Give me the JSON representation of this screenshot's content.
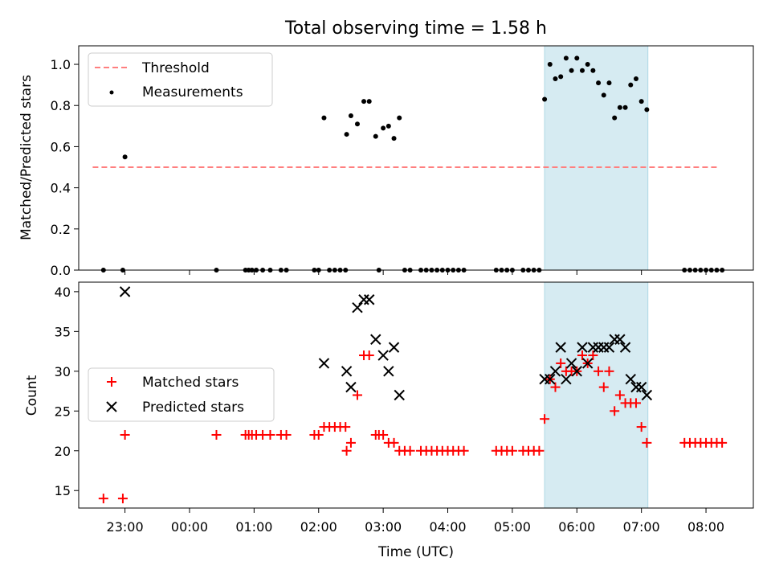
{
  "figure": {
    "title": "Total observing time = 1.58 h",
    "xlabel": "Time (UTC)",
    "highlight_color": "#add8e6"
  },
  "chart_data": [
    {
      "type": "scatter",
      "name": "ratio-panel",
      "ylabel": "Matched/Predicted stars",
      "xlim": [
        "22:17",
        "08:44"
      ],
      "ylim": [
        0,
        1.09
      ],
      "yticks": [
        0.0,
        0.2,
        0.4,
        0.6,
        0.8,
        1.0
      ],
      "ytick_labels": [
        "0.0",
        "0.2",
        "0.4",
        "0.6",
        "0.8",
        "1.0"
      ],
      "highlight_span": [
        "05:30",
        "07:06"
      ],
      "legend_position": "upper-left",
      "threshold": {
        "label": "Threshold",
        "y": 0.5,
        "x_start": "22:30",
        "x_end": "08:12",
        "color": "#ff7f7f"
      },
      "series": [
        {
          "label": "Measurements",
          "color": "#000000",
          "points": [
            [
              "22:40",
              0
            ],
            [
              "22:58",
              0
            ],
            [
              "23:00",
              0.55
            ],
            [
              "00:25",
              0
            ],
            [
              "00:52",
              0
            ],
            [
              "00:55",
              0
            ],
            [
              "00:58",
              0
            ],
            [
              "01:02",
              0
            ],
            [
              "01:08",
              0
            ],
            [
              "01:15",
              0
            ],
            [
              "01:25",
              0
            ],
            [
              "01:30",
              0
            ],
            [
              "01:56",
              0
            ],
            [
              "02:00",
              0
            ],
            [
              "02:05",
              0.74
            ],
            [
              "02:10",
              0
            ],
            [
              "02:15",
              0
            ],
            [
              "02:20",
              0
            ],
            [
              "02:25",
              0
            ],
            [
              "02:26",
              0.66
            ],
            [
              "02:30",
              0.75
            ],
            [
              "02:36",
              0.71
            ],
            [
              "02:42",
              0.82
            ],
            [
              "02:47",
              0.82
            ],
            [
              "02:53",
              0.65
            ],
            [
              "02:56",
              0
            ],
            [
              "03:00",
              0.69
            ],
            [
              "03:05",
              0.7
            ],
            [
              "03:10",
              0.64
            ],
            [
              "03:15",
              0.74
            ],
            [
              "03:20",
              0
            ],
            [
              "03:25",
              0
            ],
            [
              "03:35",
              0
            ],
            [
              "03:40",
              0
            ],
            [
              "03:45",
              0
            ],
            [
              "03:50",
              0
            ],
            [
              "03:55",
              0
            ],
            [
              "04:00",
              0
            ],
            [
              "04:05",
              0
            ],
            [
              "04:10",
              0
            ],
            [
              "04:15",
              0
            ],
            [
              "04:45",
              0
            ],
            [
              "04:50",
              0
            ],
            [
              "04:55",
              0
            ],
            [
              "05:00",
              0
            ],
            [
              "05:10",
              0
            ],
            [
              "05:15",
              0
            ],
            [
              "05:20",
              0
            ],
            [
              "05:25",
              0
            ],
            [
              "05:30",
              0.83
            ],
            [
              "05:35",
              1.0
            ],
            [
              "05:40",
              0.93
            ],
            [
              "05:45",
              0.94
            ],
            [
              "05:50",
              1.03
            ],
            [
              "05:55",
              0.97
            ],
            [
              "06:00",
              1.03
            ],
            [
              "06:05",
              0.97
            ],
            [
              "06:10",
              1.0
            ],
            [
              "06:15",
              0.97
            ],
            [
              "06:20",
              0.91
            ],
            [
              "06:25",
              0.85
            ],
            [
              "06:30",
              0.91
            ],
            [
              "06:35",
              0.74
            ],
            [
              "06:40",
              0.79
            ],
            [
              "06:45",
              0.79
            ],
            [
              "06:50",
              0.9
            ],
            [
              "06:55",
              0.93
            ],
            [
              "07:00",
              0.82
            ],
            [
              "07:05",
              0.78
            ],
            [
              "07:40",
              0
            ],
            [
              "07:45",
              0
            ],
            [
              "07:50",
              0
            ],
            [
              "07:55",
              0
            ],
            [
              "08:00",
              0
            ],
            [
              "08:05",
              0
            ],
            [
              "08:10",
              0
            ],
            [
              "08:15",
              0
            ]
          ]
        }
      ]
    },
    {
      "type": "scatter",
      "name": "count-panel",
      "ylabel": "Count",
      "xlim": [
        "22:17",
        "08:44"
      ],
      "ylim": [
        12.8,
        41.2
      ],
      "yticks": [
        15,
        20,
        25,
        30,
        35,
        40
      ],
      "ytick_labels": [
        "15",
        "20",
        "25",
        "30",
        "35",
        "40"
      ],
      "xticks": [
        "23:00",
        "00:00",
        "01:00",
        "02:00",
        "03:00",
        "04:00",
        "05:00",
        "06:00",
        "07:00",
        "08:00"
      ],
      "xtick_labels": [
        "23:00",
        "00:00",
        "01:00",
        "02:00",
        "03:00",
        "04:00",
        "05:00",
        "06:00",
        "07:00",
        "08:00"
      ],
      "highlight_span": [
        "05:30",
        "07:06"
      ],
      "legend_position": "center-left",
      "series": [
        {
          "label": "Matched stars",
          "color": "#ff0000",
          "marker": "plus",
          "points": [
            [
              "22:40",
              14
            ],
            [
              "22:58",
              14
            ],
            [
              "23:00",
              22
            ],
            [
              "00:25",
              22
            ],
            [
              "00:52",
              22
            ],
            [
              "00:55",
              22
            ],
            [
              "00:58",
              22
            ],
            [
              "01:02",
              22
            ],
            [
              "01:08",
              22
            ],
            [
              "01:15",
              22
            ],
            [
              "01:25",
              22
            ],
            [
              "01:30",
              22
            ],
            [
              "01:56",
              22
            ],
            [
              "02:00",
              22
            ],
            [
              "02:05",
              23
            ],
            [
              "02:10",
              23
            ],
            [
              "02:15",
              23
            ],
            [
              "02:20",
              23
            ],
            [
              "02:25",
              23
            ],
            [
              "02:26",
              20
            ],
            [
              "02:30",
              21
            ],
            [
              "02:36",
              27
            ],
            [
              "02:42",
              32
            ],
            [
              "02:47",
              32
            ],
            [
              "02:53",
              22
            ],
            [
              "02:56",
              22
            ],
            [
              "03:00",
              22
            ],
            [
              "03:05",
              21
            ],
            [
              "03:10",
              21
            ],
            [
              "03:15",
              20
            ],
            [
              "03:20",
              20
            ],
            [
              "03:25",
              20
            ],
            [
              "03:35",
              20
            ],
            [
              "03:40",
              20
            ],
            [
              "03:45",
              20
            ],
            [
              "03:50",
              20
            ],
            [
              "03:55",
              20
            ],
            [
              "04:00",
              20
            ],
            [
              "04:05",
              20
            ],
            [
              "04:10",
              20
            ],
            [
              "04:15",
              20
            ],
            [
              "04:45",
              20
            ],
            [
              "04:50",
              20
            ],
            [
              "04:55",
              20
            ],
            [
              "05:00",
              20
            ],
            [
              "05:10",
              20
            ],
            [
              "05:15",
              20
            ],
            [
              "05:20",
              20
            ],
            [
              "05:25",
              20
            ],
            [
              "05:30",
              24
            ],
            [
              "05:35",
              29
            ],
            [
              "05:40",
              28
            ],
            [
              "05:45",
              31
            ],
            [
              "05:50",
              30
            ],
            [
              "05:55",
              30
            ],
            [
              "06:00",
              30
            ],
            [
              "06:05",
              32
            ],
            [
              "06:10",
              31
            ],
            [
              "06:15",
              32
            ],
            [
              "06:20",
              30
            ],
            [
              "06:25",
              28
            ],
            [
              "06:30",
              30
            ],
            [
              "06:35",
              25
            ],
            [
              "06:40",
              27
            ],
            [
              "06:45",
              26
            ],
            [
              "06:50",
              26
            ],
            [
              "06:55",
              26
            ],
            [
              "07:00",
              23
            ],
            [
              "07:05",
              21
            ],
            [
              "07:40",
              21
            ],
            [
              "07:45",
              21
            ],
            [
              "07:50",
              21
            ],
            [
              "07:55",
              21
            ],
            [
              "08:00",
              21
            ],
            [
              "08:05",
              21
            ],
            [
              "08:10",
              21
            ],
            [
              "08:15",
              21
            ]
          ]
        },
        {
          "label": "Predicted stars",
          "color": "#000000",
          "marker": "x",
          "points": [
            [
              "23:00",
              40
            ],
            [
              "02:05",
              31
            ],
            [
              "02:26",
              30
            ],
            [
              "02:30",
              28
            ],
            [
              "02:36",
              38
            ],
            [
              "02:42",
              39
            ],
            [
              "02:47",
              39
            ],
            [
              "02:53",
              34
            ],
            [
              "03:00",
              32
            ],
            [
              "03:05",
              30
            ],
            [
              "03:10",
              33
            ],
            [
              "03:15",
              27
            ],
            [
              "05:30",
              29
            ],
            [
              "05:35",
              29
            ],
            [
              "05:40",
              30
            ],
            [
              "05:45",
              33
            ],
            [
              "05:50",
              29
            ],
            [
              "05:55",
              31
            ],
            [
              "06:00",
              30
            ],
            [
              "06:05",
              33
            ],
            [
              "06:10",
              31
            ],
            [
              "06:15",
              33
            ],
            [
              "06:20",
              33
            ],
            [
              "06:25",
              33
            ],
            [
              "06:30",
              33
            ],
            [
              "06:35",
              34
            ],
            [
              "06:40",
              34
            ],
            [
              "06:45",
              33
            ],
            [
              "06:50",
              29
            ],
            [
              "06:55",
              28
            ],
            [
              "07:00",
              28
            ],
            [
              "07:05",
              27
            ]
          ]
        }
      ]
    }
  ]
}
